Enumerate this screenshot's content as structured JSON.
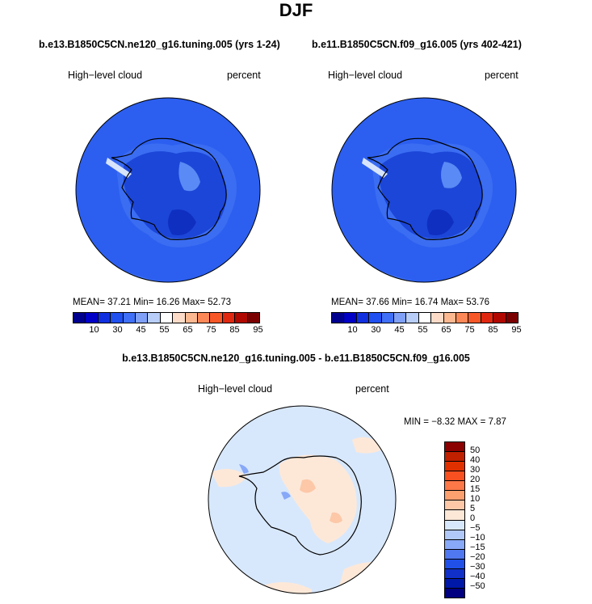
{
  "season": "DJF",
  "panels": [
    {
      "title": "b.e13.B1850C5CN.ne120_g16.tuning.005 (yrs 1-24)",
      "variable": "High−level cloud",
      "units": "percent",
      "stats": {
        "mean_label": "MEAN=",
        "mean": "37.21",
        "min_label": "Min=",
        "min": "16.26",
        "max_label": "Max=",
        "max": "52.73"
      }
    },
    {
      "title": "b.e11.B1850C5CN.f09_g16.005 (yrs 402-421)",
      "variable": "High−level cloud",
      "units": "percent",
      "stats": {
        "mean_label": "MEAN=",
        "mean": "37.66",
        "min_label": "Min=",
        "min": "16.74",
        "max_label": "Max=",
        "max": "53.76"
      }
    }
  ],
  "diff_panel": {
    "title": "b.e13.B1850C5CN.ne120_g16.tuning.005 - b.e11.B1850C5CN.f09_g16.005",
    "variable": "High−level cloud",
    "units": "percent",
    "stats": {
      "min_label": "MIN =",
      "min": "−8.32",
      "max_label": "MAX =",
      "max": "7.87"
    }
  },
  "main_colorbar": {
    "colors": [
      "#00008f",
      "#0000c7",
      "#1030e0",
      "#2050f0",
      "#4070f8",
      "#80a0f8",
      "#b8cef8",
      "#ffffff",
      "#fcdcc8",
      "#fcb890",
      "#fc8858",
      "#f85828",
      "#e02810",
      "#b00800",
      "#7a0000"
    ],
    "labels": [
      "10",
      "30",
      "45",
      "55",
      "65",
      "75",
      "85",
      "95"
    ]
  },
  "diff_colorbar": {
    "colors": [
      "#8b0000",
      "#c02000",
      "#e03000",
      "#f85020",
      "#fc7848",
      "#fca070",
      "#fcc8a8",
      "#fde8d8",
      "#d8e8fc",
      "#b0c8f8",
      "#88a8f8",
      "#5078f0",
      "#2050e8",
      "#1030c8",
      "#0018a8",
      "#000080"
    ],
    "labels": [
      "50",
      "40",
      "30",
      "20",
      "15",
      "10",
      "5",
      "0",
      "−5",
      "−10",
      "−15",
      "−20",
      "−30",
      "−40",
      "−50"
    ]
  }
}
